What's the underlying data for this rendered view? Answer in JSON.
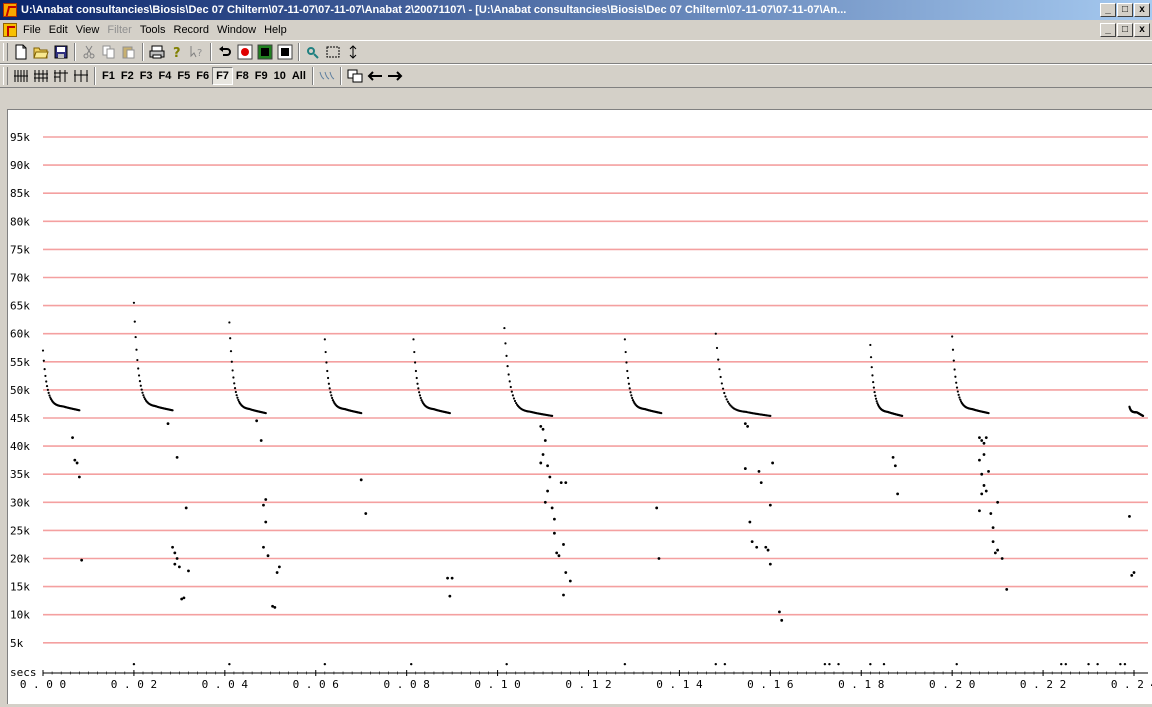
{
  "window": {
    "title": "U:\\Anabat consultancies\\Biosis\\Dec 07 Chiltern\\07-11-07\\07-11-07\\Anabat 2\\20071107\\ - [U:\\Anabat consultancies\\Biosis\\Dec 07 Chiltern\\07-11-07\\07-11-07\\An...",
    "minimize_label": "_",
    "restore_label": "□",
    "close_label": "x"
  },
  "menu": {
    "items": [
      "File",
      "Edit",
      "View",
      "Filter",
      "Tools",
      "Record",
      "Window",
      "Help"
    ],
    "disabled": [
      "Filter"
    ]
  },
  "toolbar2": {
    "filter_buttons": [
      "F1",
      "F2",
      "F3",
      "F4",
      "F5",
      "F6",
      "F7",
      "F8",
      "F9",
      "10",
      "All"
    ],
    "pressed": "F7"
  },
  "icons": {
    "toolbar1": [
      "new-file-icon",
      "open-folder-icon",
      "save-icon",
      "cut-icon",
      "copy-icon",
      "paste-icon",
      "print-icon",
      "help-icon",
      "context-help-icon",
      "undo-icon",
      "record-icon",
      "monitor-icon",
      "stop-icon",
      "zoom-icon",
      "select-rect-icon",
      "vertical-arrows-icon"
    ],
    "toolbar2_left": [
      "compress-4-icon",
      "compress-3-icon",
      "compress-2-icon",
      "compress-1-icon"
    ],
    "toolbar2_right": [
      "waveform-icon",
      "overlay-icon",
      "arrow-left-icon",
      "arrow-right-icon"
    ]
  },
  "colors": {
    "gridline": "#f4a0a0",
    "dots": "#000000",
    "titlebar_start": "#0a246a",
    "titlebar_end": "#a6caf0"
  },
  "chart_data": {
    "type": "scatter",
    "title": "",
    "xlabel": "secs",
    "ylabel": "",
    "xlim": [
      0,
      0.24
    ],
    "ylim": [
      0,
      100000
    ],
    "y_ticks": [
      5000,
      10000,
      15000,
      20000,
      25000,
      30000,
      35000,
      40000,
      45000,
      50000,
      55000,
      60000,
      65000,
      70000,
      75000,
      80000,
      85000,
      90000,
      95000
    ],
    "y_tick_labels": [
      "5k",
      "10k",
      "15k",
      "20k",
      "25k",
      "30k",
      "35k",
      "40k",
      "45k",
      "50k",
      "55k",
      "60k",
      "65k",
      "70k",
      "75k",
      "80k",
      "85k",
      "90k",
      "95k"
    ],
    "x_ticks": [
      0,
      0.02,
      0.04,
      0.06,
      0.08,
      0.1,
      0.12,
      0.14,
      0.16,
      0.18,
      0.2,
      0.22,
      0.24
    ],
    "x_tick_labels": [
      "0.00",
      "0.02",
      "0.04",
      "0.06",
      "0.08",
      "0.10",
      "0.12",
      "0.14",
      "0.16",
      "0.18",
      "0.20",
      "0.22",
      "0.24"
    ],
    "grid": true,
    "calls": [
      {
        "start": 0.0,
        "fmax": 57000,
        "fend": 47000,
        "end": 0.008
      },
      {
        "start": 0.02,
        "fmax": 65500,
        "fend": 47000,
        "end": 0.0285
      },
      {
        "start": 0.041,
        "fmax": 62000,
        "fend": 46500,
        "end": 0.049
      },
      {
        "start": 0.062,
        "fmax": 59000,
        "fend": 46500,
        "end": 0.07
      },
      {
        "start": 0.0815,
        "fmax": 59000,
        "fend": 46500,
        "end": 0.0895
      },
      {
        "start": 0.1015,
        "fmax": 61000,
        "fend": 46000,
        "end": 0.112
      },
      {
        "start": 0.128,
        "fmax": 59000,
        "fend": 46500,
        "end": 0.136
      },
      {
        "start": 0.148,
        "fmax": 60000,
        "fend": 46000,
        "end": 0.16
      },
      {
        "start": 0.182,
        "fmax": 58000,
        "fend": 46000,
        "end": 0.189
      },
      {
        "start": 0.2,
        "fmax": 59500,
        "fend": 46500,
        "end": 0.208
      },
      {
        "start": 0.239,
        "fmax": 47000,
        "fend": 46000,
        "end": 0.242
      }
    ],
    "noise_points": [
      [
        0.0065,
        41500
      ],
      [
        0.007,
        37500
      ],
      [
        0.0075,
        37000
      ],
      [
        0.008,
        34500
      ],
      [
        0.0085,
        19700
      ],
      [
        0.0275,
        44000
      ],
      [
        0.0285,
        22000
      ],
      [
        0.029,
        21000
      ],
      [
        0.0295,
        20000
      ],
      [
        0.029,
        19000
      ],
      [
        0.0295,
        38000
      ],
      [
        0.03,
        18500
      ],
      [
        0.0305,
        12800
      ],
      [
        0.031,
        13000
      ],
      [
        0.0315,
        29000
      ],
      [
        0.032,
        17800
      ],
      [
        0.047,
        44500
      ],
      [
        0.048,
        41000
      ],
      [
        0.049,
        30500
      ],
      [
        0.0485,
        29500
      ],
      [
        0.049,
        26500
      ],
      [
        0.0485,
        22000
      ],
      [
        0.0495,
        20500
      ],
      [
        0.0505,
        11500
      ],
      [
        0.0515,
        17500
      ],
      [
        0.052,
        18500
      ],
      [
        0.051,
        11300
      ],
      [
        0.07,
        34000
      ],
      [
        0.071,
        28000
      ],
      [
        0.089,
        16500
      ],
      [
        0.09,
        16500
      ],
      [
        0.0895,
        13300
      ],
      [
        0.1095,
        43500
      ],
      [
        0.11,
        43000
      ],
      [
        0.1105,
        41000
      ],
      [
        0.11,
        38500
      ],
      [
        0.1095,
        37000
      ],
      [
        0.111,
        36500
      ],
      [
        0.1115,
        34500
      ],
      [
        0.111,
        32000
      ],
      [
        0.1105,
        30000
      ],
      [
        0.112,
        29000
      ],
      [
        0.1125,
        27000
      ],
      [
        0.1125,
        24500
      ],
      [
        0.113,
        21000
      ],
      [
        0.1135,
        20500
      ],
      [
        0.114,
        33500
      ],
      [
        0.115,
        33500
      ],
      [
        0.1145,
        22500
      ],
      [
        0.115,
        17500
      ],
      [
        0.1145,
        13500
      ],
      [
        0.116,
        16000
      ],
      [
        0.135,
        29000
      ],
      [
        0.1355,
        20000
      ],
      [
        0.1545,
        44000
      ],
      [
        0.155,
        43500
      ],
      [
        0.1545,
        36000
      ],
      [
        0.1555,
        26500
      ],
      [
        0.156,
        23000
      ],
      [
        0.157,
        22000
      ],
      [
        0.1575,
        35500
      ],
      [
        0.158,
        33500
      ],
      [
        0.159,
        22000
      ],
      [
        0.1595,
        21500
      ],
      [
        0.16,
        19000
      ],
      [
        0.1605,
        37000
      ],
      [
        0.16,
        29500
      ],
      [
        0.162,
        10500
      ],
      [
        0.1625,
        9000
      ],
      [
        0.187,
        38000
      ],
      [
        0.1875,
        36500
      ],
      [
        0.188,
        31500
      ],
      [
        0.206,
        41500
      ],
      [
        0.2065,
        41000
      ],
      [
        0.207,
        40500
      ],
      [
        0.2075,
        41500
      ],
      [
        0.207,
        38500
      ],
      [
        0.206,
        37500
      ],
      [
        0.2065,
        35000
      ],
      [
        0.207,
        33000
      ],
      [
        0.2065,
        31500
      ],
      [
        0.2075,
        32000
      ],
      [
        0.208,
        35500
      ],
      [
        0.206,
        28500
      ],
      [
        0.2085,
        28000
      ],
      [
        0.209,
        25500
      ],
      [
        0.209,
        23000
      ],
      [
        0.2095,
        21000
      ],
      [
        0.21,
        21500
      ],
      [
        0.211,
        20000
      ],
      [
        0.21,
        30000
      ],
      [
        0.212,
        14500
      ],
      [
        0.239,
        27500
      ],
      [
        0.2395,
        17000
      ],
      [
        0.24,
        17500
      ]
    ],
    "baseline_points": [
      0.02,
      0.041,
      0.062,
      0.081,
      0.102,
      0.128,
      0.148,
      0.15,
      0.172,
      0.173,
      0.175,
      0.182,
      0.185,
      0.201,
      0.224,
      0.225,
      0.23,
      0.232,
      0.237,
      0.238
    ]
  }
}
